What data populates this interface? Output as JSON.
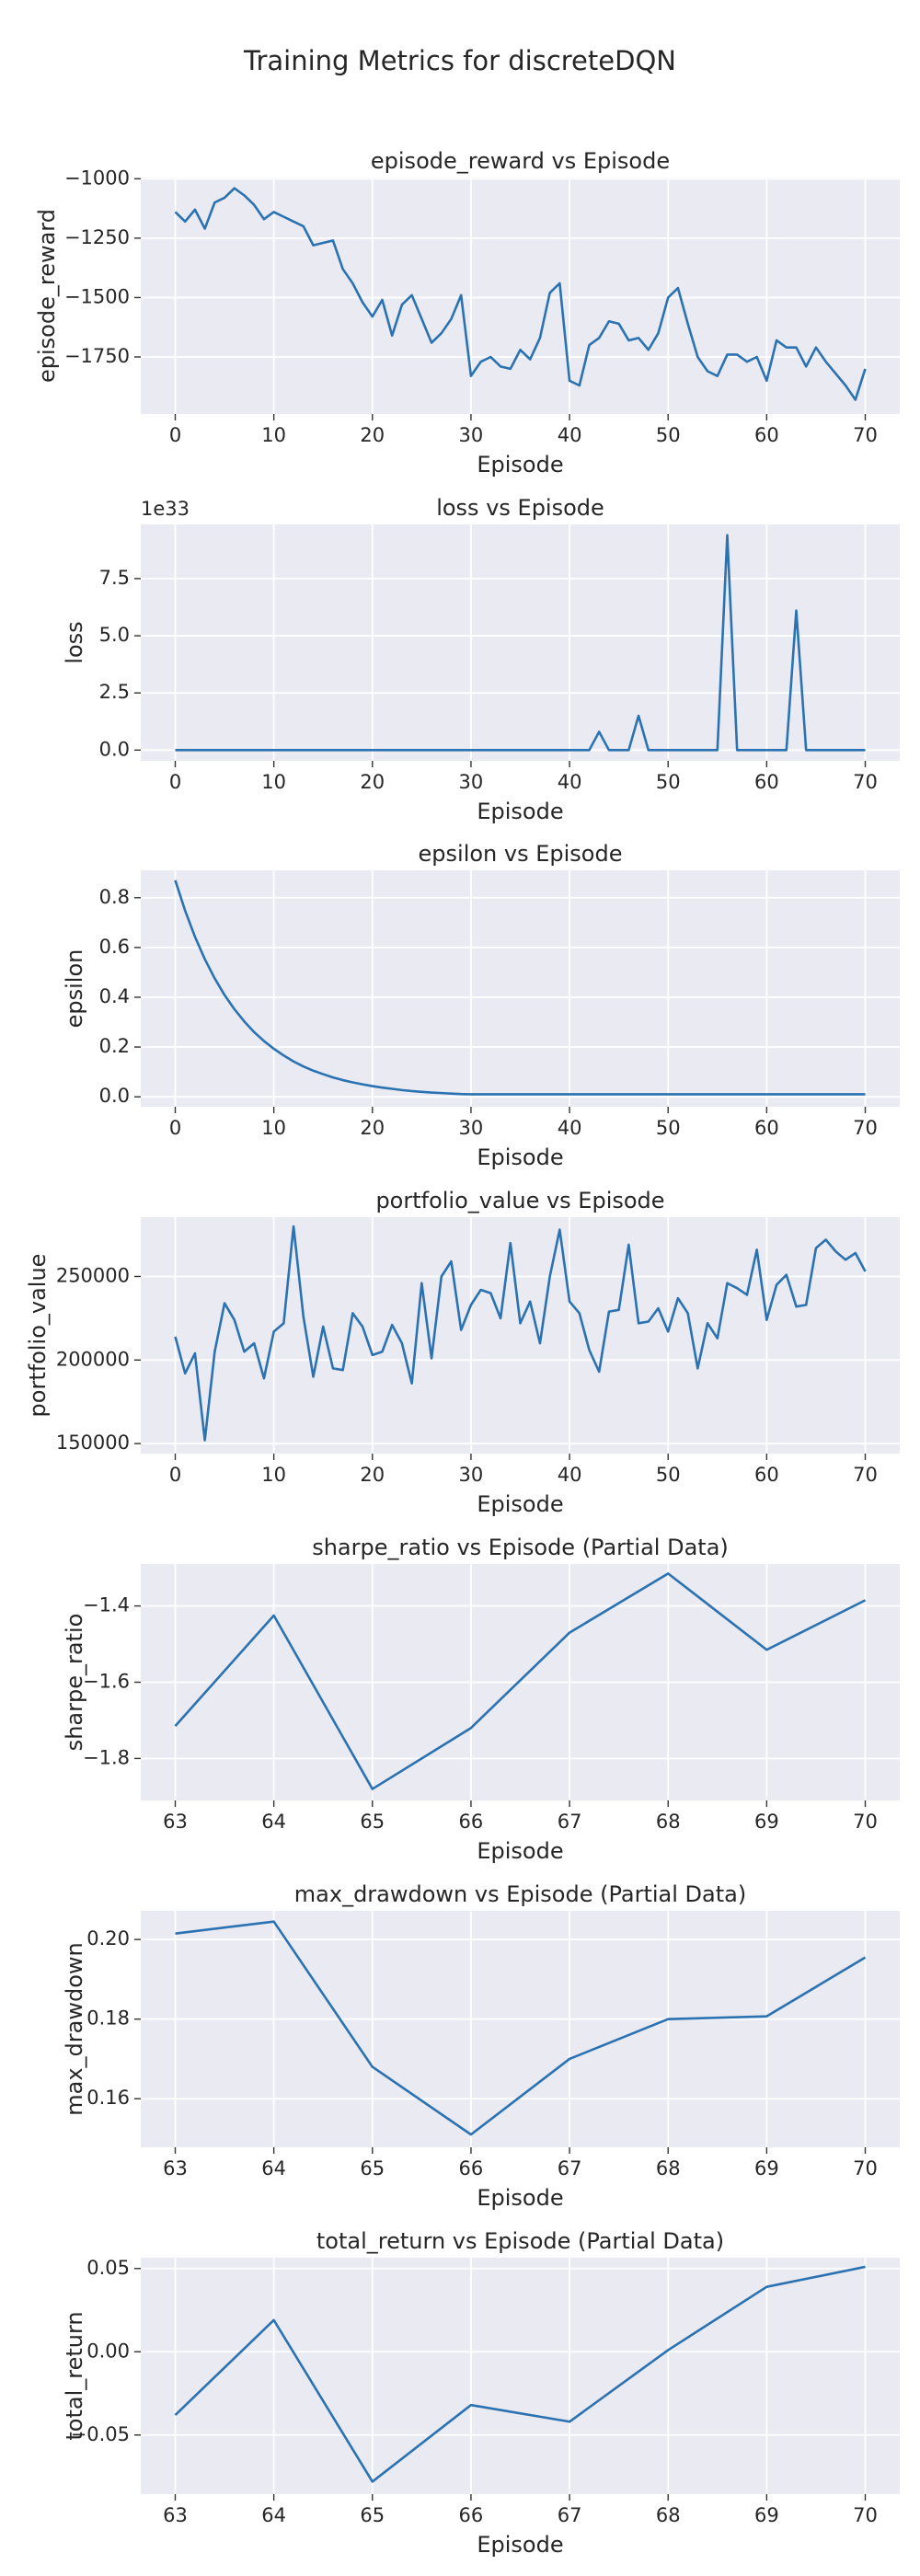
{
  "title": "Training Metrics for discreteDQN",
  "chart_data": [
    {
      "type": "line",
      "title": "episode_reward vs Episode",
      "xlabel": "Episode",
      "ylabel": "episode_reward",
      "color": "#2a72b2",
      "grid": true,
      "x": [
        0,
        1,
        2,
        3,
        4,
        5,
        6,
        7,
        8,
        9,
        10,
        11,
        12,
        13,
        14,
        15,
        16,
        17,
        18,
        19,
        20,
        21,
        22,
        23,
        24,
        25,
        26,
        27,
        28,
        29,
        30,
        31,
        32,
        33,
        34,
        35,
        36,
        37,
        38,
        39,
        40,
        41,
        42,
        43,
        44,
        45,
        46,
        47,
        48,
        49,
        50,
        51,
        52,
        53,
        54,
        55,
        56,
        57,
        58,
        59,
        60,
        61,
        62,
        63,
        64,
        65,
        66,
        67,
        68,
        69,
        70
      ],
      "values": [
        -1140,
        -1180,
        -1130,
        -1210,
        -1100,
        -1080,
        -1040,
        -1070,
        -1110,
        -1170,
        -1140,
        -1160,
        -1180,
        -1200,
        -1280,
        -1270,
        -1260,
        -1380,
        -1440,
        -1520,
        -1580,
        -1510,
        -1660,
        -1530,
        -1490,
        -1590,
        -1690,
        -1650,
        -1590,
        -1490,
        -1830,
        -1770,
        -1750,
        -1790,
        -1800,
        -1720,
        -1760,
        -1670,
        -1480,
        -1440,
        -1850,
        -1870,
        -1700,
        -1670,
        -1600,
        -1610,
        -1680,
        -1670,
        -1720,
        -1650,
        -1500,
        -1460,
        -1610,
        -1750,
        -1810,
        -1830,
        -1740,
        -1740,
        -1770,
        -1750,
        -1850,
        -1680,
        -1710,
        -1710,
        -1790,
        -1710,
        -1770,
        -1820,
        -1870,
        -1930,
        -1800
      ],
      "xlim": [
        -3.5,
        73.5
      ],
      "ylim": [
        -1990,
        -995
      ],
      "xticks": [
        0,
        10,
        20,
        30,
        40,
        50,
        60,
        70
      ],
      "yticks": [
        {
          "value": -1750,
          "label": "−1750"
        },
        {
          "value": -1500,
          "label": "−1500"
        },
        {
          "value": -1250,
          "label": "−1250"
        },
        {
          "value": -1000,
          "label": "−1000"
        }
      ]
    },
    {
      "type": "line",
      "title": "loss vs Episode",
      "xlabel": "Episode",
      "ylabel": "loss",
      "offset_label": "1e33",
      "color": "#2a72b2",
      "grid": true,
      "x": [
        0,
        1,
        2,
        3,
        4,
        5,
        6,
        7,
        8,
        9,
        10,
        11,
        12,
        13,
        14,
        15,
        16,
        17,
        18,
        19,
        20,
        21,
        22,
        23,
        24,
        25,
        26,
        27,
        28,
        29,
        30,
        31,
        32,
        33,
        34,
        35,
        36,
        37,
        38,
        39,
        40,
        41,
        42,
        43,
        44,
        45,
        46,
        47,
        48,
        49,
        50,
        51,
        52,
        53,
        54,
        55,
        56,
        57,
        58,
        59,
        60,
        61,
        62,
        63,
        64,
        65,
        66,
        67,
        68,
        69,
        70
      ],
      "values": [
        0,
        0,
        0,
        0,
        0,
        0,
        0,
        0,
        0,
        0,
        0,
        0,
        0,
        0,
        0,
        0,
        0,
        0,
        0,
        0,
        0,
        0,
        0,
        0,
        0,
        0,
        0,
        0,
        0,
        0,
        0,
        0,
        0,
        0,
        0,
        0,
        0,
        0,
        0,
        0,
        0,
        0,
        0,
        0.8,
        0,
        0,
        0,
        1.5,
        0,
        0,
        0,
        0,
        0,
        0,
        0,
        0,
        9.4,
        0,
        0,
        0,
        0,
        0,
        0,
        6.1,
        0,
        0,
        0,
        0,
        0,
        0,
        0
      ],
      "xlim": [
        -3.5,
        73.5
      ],
      "ylim": [
        -0.47,
        9.87
      ],
      "xticks": [
        0,
        10,
        20,
        30,
        40,
        50,
        60,
        70
      ],
      "yticks": [
        {
          "value": 0,
          "label": "0.0"
        },
        2.5,
        {
          "value": 5,
          "label": "5.0"
        },
        7.5
      ]
    },
    {
      "type": "line",
      "title": "epsilon vs Episode",
      "xlabel": "Episode",
      "ylabel": "epsilon",
      "color": "#2a72b2",
      "grid": true,
      "x": [
        0,
        1,
        2,
        3,
        4,
        5,
        6,
        7,
        8,
        9,
        10,
        11,
        12,
        13,
        14,
        15,
        16,
        17,
        18,
        19,
        20,
        21,
        22,
        23,
        24,
        25,
        26,
        27,
        28,
        29,
        30,
        31,
        32,
        33,
        34,
        35,
        36,
        37,
        38,
        39,
        40,
        41,
        42,
        43,
        44,
        45,
        46,
        47,
        48,
        49,
        50,
        51,
        52,
        53,
        54,
        55,
        56,
        57,
        58,
        59,
        60,
        61,
        62,
        63,
        64,
        65,
        66,
        67,
        68,
        69,
        70
      ],
      "values": [
        0.87,
        0.748,
        0.643,
        0.553,
        0.476,
        0.409,
        0.352,
        0.303,
        0.26,
        0.224,
        0.193,
        0.166,
        0.142,
        0.122,
        0.105,
        0.091,
        0.078,
        0.067,
        0.058,
        0.05,
        0.043,
        0.037,
        0.032,
        0.027,
        0.023,
        0.02,
        0.017,
        0.015,
        0.013,
        0.011,
        0.01,
        0.01,
        0.01,
        0.01,
        0.01,
        0.01,
        0.01,
        0.01,
        0.01,
        0.01,
        0.01,
        0.01,
        0.01,
        0.01,
        0.01,
        0.01,
        0.01,
        0.01,
        0.01,
        0.01,
        0.01,
        0.01,
        0.01,
        0.01,
        0.01,
        0.01,
        0.01,
        0.01,
        0.01,
        0.01,
        0.01,
        0.01,
        0.01,
        0.01,
        0.01,
        0.01,
        0.01,
        0.01,
        0.01,
        0.01,
        0.01
      ],
      "xlim": [
        -3.5,
        73.5
      ],
      "ylim": [
        -0.04,
        0.91
      ],
      "xticks": [
        0,
        10,
        20,
        30,
        40,
        50,
        60,
        70
      ],
      "yticks": [
        {
          "value": 0,
          "label": "0.0"
        },
        0.2,
        0.4,
        0.6,
        0.8
      ]
    },
    {
      "type": "line",
      "title": "portfolio_value vs Episode",
      "xlabel": "Episode",
      "ylabel": "portfolio_value",
      "color": "#2a72b2",
      "grid": true,
      "x": [
        0,
        1,
        2,
        3,
        4,
        5,
        6,
        7,
        8,
        9,
        10,
        11,
        12,
        13,
        14,
        15,
        16,
        17,
        18,
        19,
        20,
        21,
        22,
        23,
        24,
        25,
        26,
        27,
        28,
        29,
        30,
        31,
        32,
        33,
        34,
        35,
        36,
        37,
        38,
        39,
        40,
        41,
        42,
        43,
        44,
        45,
        46,
        47,
        48,
        49,
        50,
        51,
        52,
        53,
        54,
        55,
        56,
        57,
        58,
        59,
        60,
        61,
        62,
        63,
        64,
        65,
        66,
        67,
        68,
        69,
        70
      ],
      "values": [
        214000,
        192000,
        204000,
        152000,
        205000,
        234000,
        224000,
        205000,
        210000,
        189000,
        217000,
        222000,
        280000,
        226000,
        190000,
        220000,
        195000,
        194000,
        228000,
        220000,
        203000,
        205000,
        221000,
        210000,
        186000,
        246000,
        201000,
        250000,
        259000,
        218000,
        233000,
        242000,
        240000,
        225000,
        270000,
        222000,
        235000,
        210000,
        250000,
        278000,
        235000,
        228000,
        206000,
        193000,
        229000,
        230000,
        269000,
        222000,
        223000,
        231000,
        217000,
        237000,
        228000,
        195000,
        222000,
        213000,
        246000,
        243000,
        239000,
        266000,
        224000,
        245000,
        251000,
        232000,
        233000,
        267000,
        272000,
        265000,
        260000,
        264000,
        253000
      ],
      "xlim": [
        -3.5,
        73.5
      ],
      "ylim": [
        144000,
        285500
      ],
      "xticks": [
        0,
        10,
        20,
        30,
        40,
        50,
        60,
        70
      ],
      "yticks": [
        150000,
        200000,
        250000
      ]
    },
    {
      "type": "line",
      "title": "sharpe_ratio vs Episode (Partial Data)",
      "xlabel": "Episode",
      "ylabel": "sharpe_ratio",
      "color": "#2a72b2",
      "grid": true,
      "x": [
        63,
        64,
        65,
        66,
        67,
        68,
        69,
        70
      ],
      "values": [
        -1.715,
        -1.425,
        -1.88,
        -1.72,
        -1.47,
        -1.315,
        -1.515,
        -1.385
      ],
      "xlim": [
        62.65,
        70.35
      ],
      "ylim": [
        -1.91,
        -1.29
      ],
      "xticks": [
        63,
        64,
        65,
        66,
        67,
        68,
        69,
        70
      ],
      "yticks": [
        {
          "value": -1.8,
          "label": "−1.8"
        },
        {
          "value": -1.6,
          "label": "−1.6"
        },
        {
          "value": -1.4,
          "label": "−1.4"
        }
      ]
    },
    {
      "type": "line",
      "title": "max_drawdown vs Episode (Partial Data)",
      "xlabel": "Episode",
      "ylabel": "max_drawdown",
      "color": "#2a72b2",
      "grid": true,
      "x": [
        63,
        64,
        65,
        66,
        67,
        68,
        69,
        70
      ],
      "values": [
        0.2015,
        0.2045,
        0.168,
        0.151,
        0.17,
        0.18,
        0.1807,
        0.1955
      ],
      "xlim": [
        62.65,
        70.35
      ],
      "ylim": [
        0.1478,
        0.2072
      ],
      "xticks": [
        63,
        64,
        65,
        66,
        67,
        68,
        69,
        70
      ],
      "yticks": [
        0.16,
        0.18,
        {
          "value": 0.2,
          "label": "0.20"
        }
      ]
    },
    {
      "type": "line",
      "title": "total_return vs Episode (Partial Data)",
      "xlabel": "Episode",
      "ylabel": "total_return",
      "color": "#2a72b2",
      "grid": true,
      "x": [
        63,
        64,
        65,
        66,
        67,
        68,
        69,
        70
      ],
      "values": [
        -0.038,
        0.019,
        -0.078,
        -0.032,
        -0.042,
        0.001,
        0.039,
        0.051
      ],
      "xlim": [
        62.65,
        70.35
      ],
      "ylim": [
        -0.0855,
        0.0565
      ],
      "xticks": [
        63,
        64,
        65,
        66,
        67,
        68,
        69,
        70
      ],
      "yticks": [
        {
          "value": -0.05,
          "label": "−0.05"
        },
        {
          "value": 0,
          "label": "0.00"
        },
        0.05
      ]
    }
  ]
}
